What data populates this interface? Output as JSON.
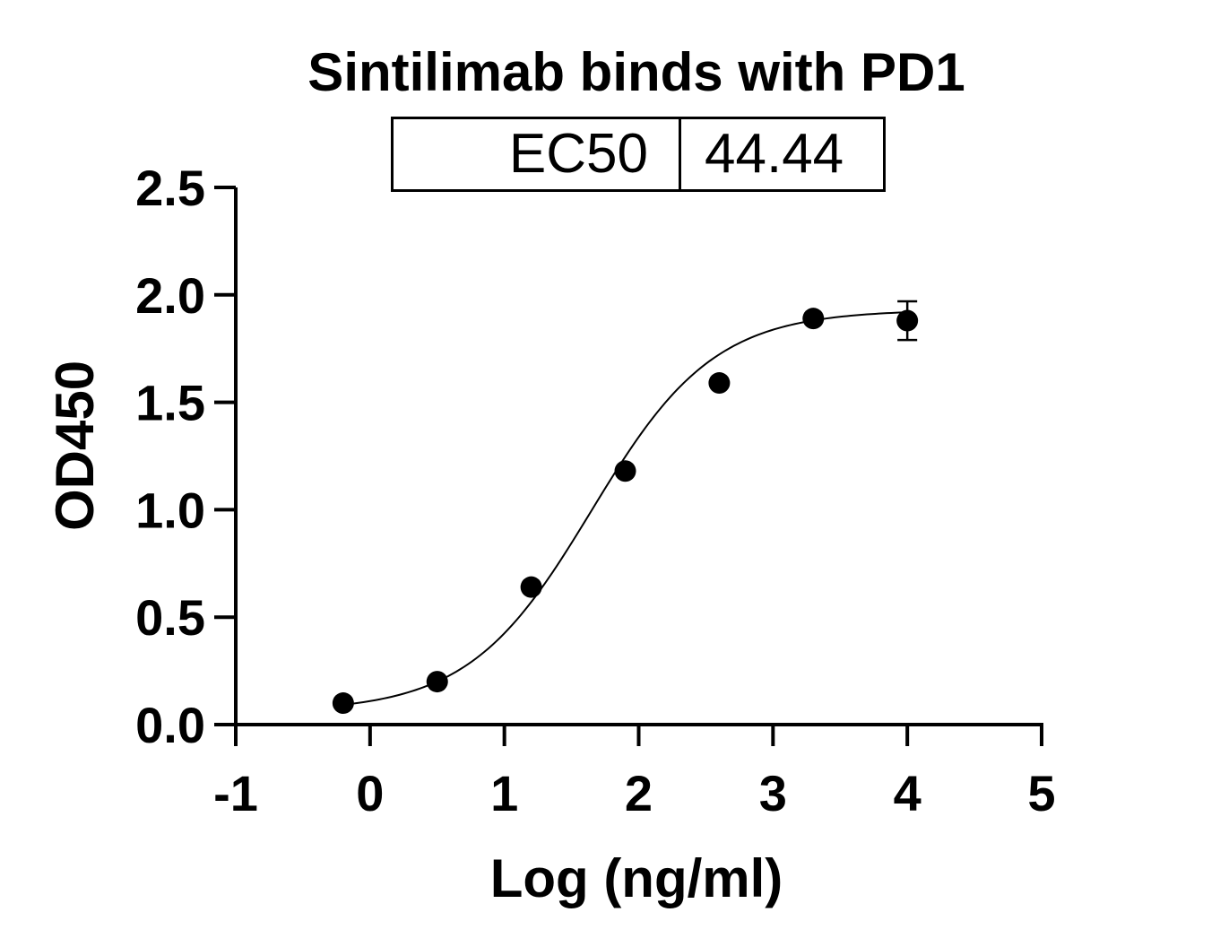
{
  "chart_data": {
    "type": "scatter",
    "title": "Sintilimab binds with PD1",
    "xlabel": "Log (ng/ml)",
    "ylabel": "OD450",
    "xlim": [
      -1,
      5
    ],
    "ylim": [
      0,
      2.5
    ],
    "x_ticks": [
      "-1",
      "0",
      "1",
      "2",
      "3",
      "4",
      "5"
    ],
    "y_ticks": [
      "0.0",
      "0.5",
      "1.0",
      "1.5",
      "2.0",
      "2.5"
    ],
    "ec50": {
      "label": "EC50",
      "value": "44.44"
    },
    "points": [
      {
        "x": -0.2,
        "y": 0.1
      },
      {
        "x": 0.5,
        "y": 0.2
      },
      {
        "x": 1.2,
        "y": 0.64
      },
      {
        "x": 1.9,
        "y": 1.18
      },
      {
        "x": 2.6,
        "y": 1.59
      },
      {
        "x": 3.3,
        "y": 1.89
      },
      {
        "x": 4.0,
        "y": 1.88,
        "err": 0.09
      }
    ],
    "fit": {
      "model": "4PL",
      "bottom": 0.06,
      "top": 1.93,
      "logEC50": 1.6478,
      "hill": 0.95
    },
    "grid": false,
    "legend": "none"
  }
}
